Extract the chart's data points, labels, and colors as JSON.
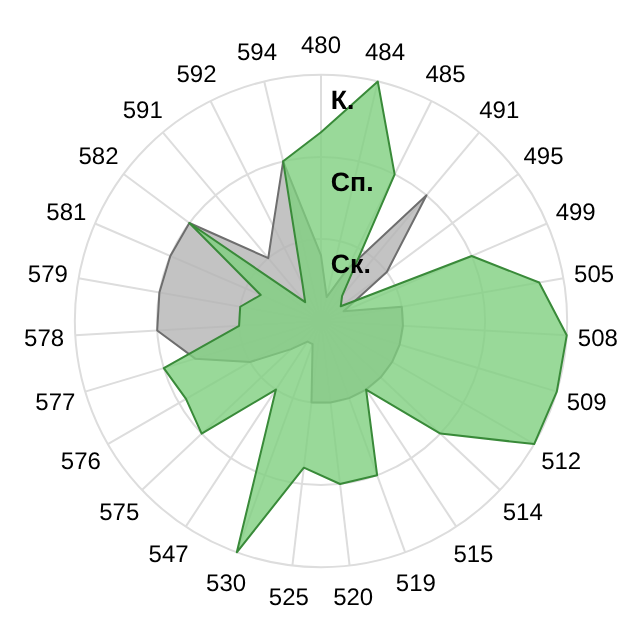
{
  "chart_data": {
    "type": "radar",
    "categories": [
      "480",
      "484",
      "485",
      "491",
      "495",
      "499",
      "505",
      "508",
      "509",
      "512",
      "514",
      "515",
      "519",
      "520",
      "525",
      "530",
      "547",
      "575",
      "576",
      "577",
      "578",
      "579",
      "581",
      "582",
      "591",
      "592",
      "594"
    ],
    "series": [
      {
        "color": "#b4b4b4",
        "values": [
          0.8,
          0.3,
          0.7,
          2.0,
          1.0,
          0.3,
          1.0,
          1.0,
          1.0,
          1.0,
          1.0,
          1.0,
          1.0,
          1.0,
          1.0,
          0.3,
          0.3,
          0.5,
          1.0,
          1.6,
          2.0,
          2.0,
          2.0,
          2.0,
          1.0,
          1.3,
          2.0
        ]
      },
      {
        "color": "#7fd07f",
        "values": [
          2.3,
          3.0,
          2.0,
          0.4,
          0.3,
          2.0,
          2.7,
          3.0,
          3.0,
          3.0,
          2.0,
          1.0,
          2.0,
          2.0,
          1.8,
          3.0,
          1.0,
          2.0,
          1.9,
          2.0,
          1.0,
          1.0,
          0.8,
          2.0,
          0.3,
          0.5,
          2.0
        ]
      }
    ],
    "ylim": [
      0,
      3
    ],
    "yticks": [
      {
        "value": 1,
        "label": "Ск."
      },
      {
        "value": 2,
        "label": "Сп."
      },
      {
        "value": 3,
        "label": "К."
      }
    ],
    "grid": true
  }
}
